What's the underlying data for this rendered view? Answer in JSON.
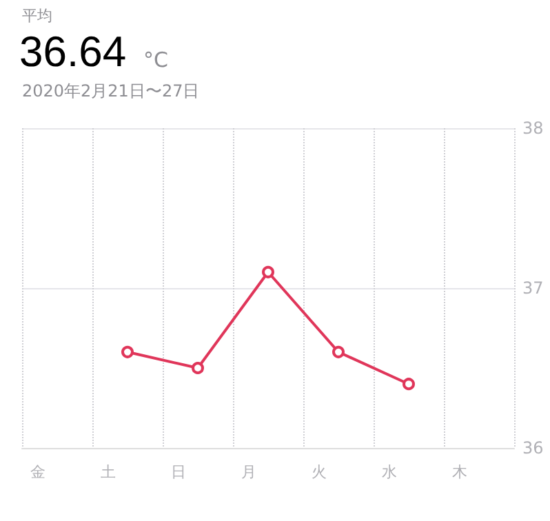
{
  "chart_data": {
    "type": "line",
    "title": "平均",
    "subtitle": "2020年2月21日〜27日",
    "annotations": [
      "36.64",
      "°C"
    ],
    "categories": [
      "金",
      "土",
      "日",
      "月",
      "火",
      "水",
      "木"
    ],
    "series": [
      {
        "color": "#e0365a",
        "values": [
          null,
          36.6,
          36.5,
          37.1,
          36.6,
          36.4,
          null
        ]
      }
    ],
    "ylim": [
      36,
      38
    ],
    "yticks": [
      36,
      37,
      38
    ],
    "grid": true,
    "marker": "circle",
    "line_style": "solid"
  }
}
